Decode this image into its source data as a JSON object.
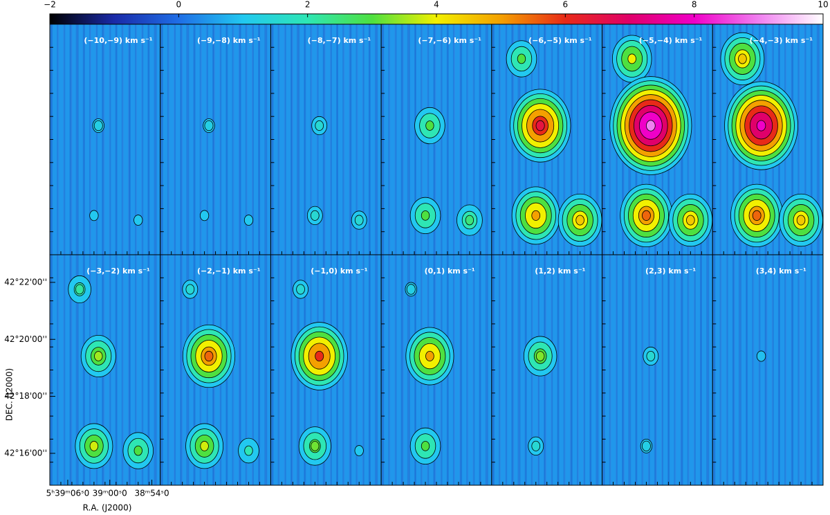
{
  "chart_data": {
    "type": "channel-map",
    "clim": [
      -2,
      10
    ],
    "cticks": [
      {
        "value": -2,
        "label": "−2"
      },
      0,
      2,
      4,
      6,
      8,
      10
    ],
    "colormap": [
      "#000000",
      "#1a2aa8",
      "#1f6ee6",
      "#22c8f0",
      "#2ee6b4",
      "#4ee040",
      "#f2f000",
      "#f4a000",
      "#e82a18",
      "#e0006a",
      "#f000c8",
      "#f080f0",
      "#ffffff"
    ],
    "xlabel": "R.A. (J2000)",
    "ylabel": "DEC. (J2000)",
    "xlim": [
      2348.56,
      2332.8
    ],
    "xticks": [
      {
        "value": 2346,
        "label": "5ʰ39ᵐ06ˢ0"
      },
      {
        "value": 2340,
        "label": "39ᵐ00ˢ0"
      },
      {
        "value": 2334,
        "label": "38ᵐ54ˢ0"
      }
    ],
    "ylim": [
      14.88,
      22.97
    ],
    "yticks": [
      {
        "value": 22,
        "label": "42°22'00''"
      },
      {
        "value": 20,
        "label": "42°20'00''"
      },
      {
        "value": 18,
        "label": "42°18'00''"
      },
      {
        "value": 16,
        "label": "42°16'00''"
      }
    ],
    "panels": [
      {
        "label": "(−10,−9) km s⁻¹",
        "peaks": [
          null,
          1.2,
          1.0,
          1.0
        ]
      },
      {
        "label": "(−9,−8) km s⁻¹",
        "peaks": [
          null,
          1.2,
          1.0,
          1.0
        ]
      },
      {
        "label": "(−8,−7) km s⁻¹",
        "peaks": [
          null,
          1.5,
          1.5,
          1.5
        ]
      },
      {
        "label": "(−7,−6) km s⁻¹",
        "peaks": [
          null,
          3.0,
          3.0,
          2.5
        ]
      },
      {
        "label": "(−6,−5) km s⁻¹",
        "peaks": [
          3.0,
          6.5,
          5.0,
          4.5
        ]
      },
      {
        "label": "(−5,−4) km s⁻¹",
        "peaks": [
          4.0,
          9.0,
          5.5,
          4.5
        ]
      },
      {
        "label": "(−4,−3) km s⁻¹",
        "peaks": [
          4.5,
          8.0,
          5.5,
          4.5
        ]
      },
      {
        "label": "(−3,−2) km s⁻¹",
        "peaks": [
          2.2,
          3.5,
          3.8,
          3.0
        ]
      },
      {
        "label": "(−2,−1) km s⁻¹",
        "peaks": [
          1.5,
          5.5,
          3.8,
          2.0
        ]
      },
      {
        "label": "(−1,0) km s⁻¹",
        "peaks": [
          1.5,
          6.0,
          3.2,
          1.0
        ]
      },
      {
        "label": "(0,1) km s⁻¹",
        "peaks": [
          1.2,
          5.0,
          3.0,
          null
        ]
      },
      {
        "label": "(1,2) km s⁻¹",
        "peaks": [
          null,
          3.3,
          1.5,
          null
        ]
      },
      {
        "label": "(2,3) km s⁻¹",
        "peaks": [
          null,
          1.5,
          1.2,
          null
        ]
      },
      {
        "label": "(3,4) km s⁻¹",
        "peaks": [
          null,
          0.9,
          null,
          null
        ]
      }
    ]
  }
}
